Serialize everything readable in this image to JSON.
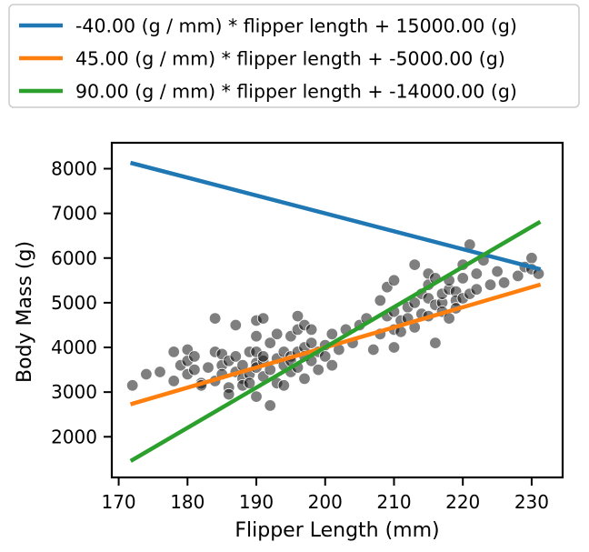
{
  "chart_data": {
    "type": "scatter",
    "xlabel": "Flipper Length (mm)",
    "ylabel": "Body Mass (g)",
    "xlim": [
      169,
      234.5
    ],
    "ylim": [
      1090,
      8580
    ],
    "xticks": [
      170,
      180,
      190,
      200,
      210,
      220,
      230
    ],
    "yticks": [
      2000,
      3000,
      4000,
      5000,
      6000,
      7000,
      8000
    ],
    "grid": false,
    "legend_position": "top (above plot)",
    "point_color": "#000000",
    "point_opacity": 0.5,
    "line_series": [
      {
        "name": "-40.00 (g / mm) * flipper length + 15000.00 (g)",
        "slope": -40,
        "intercept": 15000,
        "x_range": [
          172,
          231
        ],
        "color": "#1f77b4"
      },
      {
        "name": "45.00 (g / mm) * flipper length + -5000.00 (g)",
        "slope": 45,
        "intercept": -5000,
        "x_range": [
          172,
          231
        ],
        "color": "#ff7f0e"
      },
      {
        "name": "90.00 (g / mm) * flipper length + -14000.00 (g)",
        "slope": 90,
        "intercept": -14000,
        "x_range": [
          172,
          231
        ],
        "color": "#2ca02c"
      }
    ],
    "points": [
      [
        172,
        3150
      ],
      [
        174,
        3400
      ],
      [
        176,
        3450
      ],
      [
        178,
        3250
      ],
      [
        178,
        3900
      ],
      [
        179,
        3600
      ],
      [
        180,
        3700
      ],
      [
        180,
        3400
      ],
      [
        180,
        3950
      ],
      [
        181,
        3800
      ],
      [
        181,
        3500
      ],
      [
        182,
        3200
      ],
      [
        182,
        3150
      ],
      [
        183,
        3550
      ],
      [
        184,
        3250
      ],
      [
        184,
        3900
      ],
      [
        184,
        4650
      ],
      [
        185,
        3600
      ],
      [
        185,
        3850
      ],
      [
        185,
        3400
      ],
      [
        186,
        3700
      ],
      [
        186,
        3100
      ],
      [
        186,
        2950
      ],
      [
        187,
        3450
      ],
      [
        187,
        3800
      ],
      [
        187,
        4500
      ],
      [
        188,
        3300
      ],
      [
        188,
        3600
      ],
      [
        188,
        3150
      ],
      [
        189,
        3400
      ],
      [
        189,
        3900
      ],
      [
        189,
        3200
      ],
      [
        190,
        3650
      ],
      [
        190,
        4600
      ],
      [
        190,
        4250
      ],
      [
        190,
        3900
      ],
      [
        190,
        3550
      ],
      [
        190,
        2900
      ],
      [
        191,
        3700
      ],
      [
        191,
        3800
      ],
      [
        191,
        3350
      ],
      [
        191,
        4650
      ],
      [
        192,
        2700
      ],
      [
        192,
        3500
      ],
      [
        192,
        4100
      ],
      [
        193,
        3750
      ],
      [
        193,
        4300
      ],
      [
        193,
        3200
      ],
      [
        194,
        3600
      ],
      [
        194,
        3900
      ],
      [
        194,
        3150
      ],
      [
        195,
        3800
      ],
      [
        195,
        4250
      ],
      [
        195,
        3700
      ],
      [
        195,
        3450
      ],
      [
        196,
        4400
      ],
      [
        196,
        3900
      ],
      [
        196,
        3550
      ],
      [
        196,
        4700
      ],
      [
        197,
        4000
      ],
      [
        197,
        3800
      ],
      [
        197,
        4500
      ],
      [
        197,
        3300
      ],
      [
        198,
        4100
      ],
      [
        198,
        3700
      ],
      [
        198,
        4400
      ],
      [
        199,
        3900
      ],
      [
        199,
        3500
      ],
      [
        200,
        4050
      ],
      [
        200,
        3800
      ],
      [
        201,
        4300
      ],
      [
        201,
        3600
      ],
      [
        202,
        3950
      ],
      [
        203,
        4400
      ],
      [
        204,
        4100
      ],
      [
        205,
        4500
      ],
      [
        206,
        4650
      ],
      [
        207,
        3950
      ],
      [
        208,
        5050
      ],
      [
        208,
        4300
      ],
      [
        209,
        4700
      ],
      [
        209,
        5350
      ],
      [
        210,
        4400
      ],
      [
        210,
        4000
      ],
      [
        210,
        4800
      ],
      [
        210,
        5500
      ],
      [
        211,
        4600
      ],
      [
        211,
        4350
      ],
      [
        212,
        4900
      ],
      [
        212,
        4650
      ],
      [
        213,
        5000
      ],
      [
        213,
        5850
      ],
      [
        213,
        4450
      ],
      [
        214,
        4750
      ],
      [
        214,
        5200
      ],
      [
        215,
        5100
      ],
      [
        215,
        4700
      ],
      [
        215,
        5650
      ],
      [
        215,
        5400
      ],
      [
        216,
        4950
      ],
      [
        216,
        5550
      ],
      [
        216,
        4100
      ],
      [
        217,
        5000
      ],
      [
        217,
        5200
      ],
      [
        217,
        4800
      ],
      [
        218,
        5300
      ],
      [
        218,
        4650
      ],
      [
        218,
        5500
      ],
      [
        219,
        5250
      ],
      [
        219,
        5050
      ],
      [
        219,
        4875
      ],
      [
        220,
        5550
      ],
      [
        220,
        5100
      ],
      [
        220,
        5850
      ],
      [
        221,
        5200
      ],
      [
        221,
        6300
      ],
      [
        222,
        5650
      ],
      [
        222,
        5300
      ],
      [
        223,
        5950
      ],
      [
        224,
        5400
      ],
      [
        225,
        5700
      ],
      [
        226,
        5450
      ],
      [
        228,
        5600
      ],
      [
        229,
        5800
      ],
      [
        230,
        6000
      ],
      [
        230,
        5750
      ],
      [
        231,
        5650
      ]
    ]
  }
}
